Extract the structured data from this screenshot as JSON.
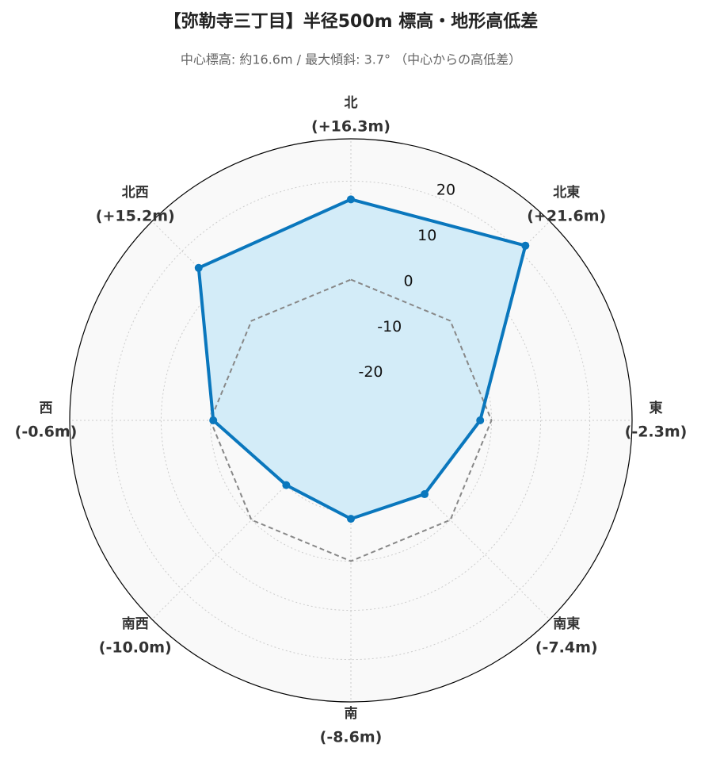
{
  "chart_data": {
    "type": "radar",
    "title": "【弥勒寺三丁目】半径500m 標高・地形高低差",
    "subtitle": "中心標高: 約16.6m / 最大傾斜: 3.7° （中心からの高低差）",
    "categories": [
      "北",
      "北東",
      "東",
      "南東",
      "南",
      "南西",
      "西",
      "北西"
    ],
    "values": [
      16.3,
      21.6,
      -2.3,
      -7.4,
      -8.6,
      -10.0,
      -0.6,
      15.2
    ],
    "value_labels": [
      "(+16.3m)",
      "(+21.6m)",
      "(-2.3m)",
      "(-7.4m)",
      "(-8.6m)",
      "(-10.0m)",
      "(-0.6m)",
      "(+15.2m)"
    ],
    "color": "#0a77bd",
    "fill_color": "#d3ecf8",
    "ylim": [
      -28.6,
      28.6
    ],
    "yticks": [
      -20,
      -10,
      0,
      10,
      20
    ],
    "grid": true,
    "reference_line": {
      "value": 0,
      "color": "#888888"
    }
  }
}
